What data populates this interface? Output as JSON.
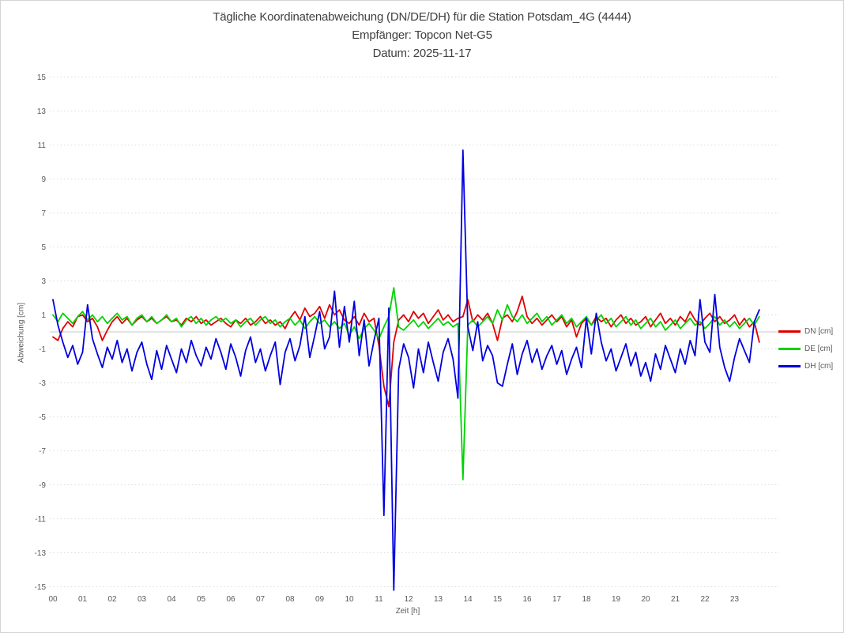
{
  "chart_data": {
    "type": "line",
    "title": "Tägliche Koordinatenabweichung (DN/DE/DH) für die Station Potsdam_4G (4444)",
    "subtitle_lines": [
      "Empfänger: Topcon Net-G5",
      "Datum: 2025-11-17"
    ],
    "xlabel": "Zeit [h]",
    "ylabel": "Abweichung [cm]",
    "xlim": [
      0,
      24
    ],
    "ylim": [
      -15,
      15
    ],
    "x_ticks": [
      "00",
      "01",
      "02",
      "03",
      "04",
      "05",
      "06",
      "07",
      "08",
      "09",
      "10",
      "11",
      "12",
      "13",
      "14",
      "15",
      "16",
      "17",
      "18",
      "19",
      "20",
      "21",
      "22",
      "23"
    ],
    "y_ticks": [
      15,
      13,
      11,
      9,
      7,
      5,
      3,
      1,
      -1,
      -3,
      -5,
      -7,
      -9,
      -11,
      -13,
      -15
    ],
    "grid": "horizontal dotted lines at odd values, solid light line at 0, no vertical gridlines",
    "legend_position": "right",
    "x_start_hours": 0,
    "x_step_hours": 0.1666667,
    "series": [
      {
        "name": "DN [cm]",
        "color": "#e00000",
        "values": [
          -0.3,
          -0.5,
          0.2,
          0.6,
          0.3,
          0.9,
          1.0,
          0.6,
          0.8,
          0.3,
          -0.5,
          0.1,
          0.6,
          0.9,
          0.5,
          0.8,
          0.4,
          0.7,
          0.9,
          0.6,
          0.8,
          0.5,
          0.7,
          0.9,
          0.6,
          0.7,
          0.4,
          0.8,
          0.6,
          0.9,
          0.5,
          0.7,
          0.4,
          0.6,
          0.8,
          0.5,
          0.3,
          0.7,
          0.5,
          0.8,
          0.4,
          0.6,
          0.9,
          0.5,
          0.7,
          0.4,
          0.6,
          0.2,
          0.8,
          1.2,
          0.7,
          1.4,
          0.9,
          1.1,
          1.5,
          0.8,
          1.6,
          1.0,
          1.3,
          0.7,
          0.5,
          0.9,
          0.4,
          1.1,
          0.6,
          0.8,
          -0.8,
          -3.2,
          -4.4,
          -0.6,
          0.7,
          1.0,
          0.6,
          1.2,
          0.8,
          1.1,
          0.5,
          0.9,
          1.3,
          0.7,
          1.0,
          0.6,
          0.8,
          0.9,
          1.9,
          0.6,
          1.0,
          0.7,
          1.1,
          0.5,
          -0.5,
          0.8,
          1.0,
          0.6,
          1.2,
          2.1,
          0.9,
          0.5,
          0.8,
          0.4,
          0.7,
          1.0,
          0.6,
          0.9,
          0.3,
          0.7,
          -0.3,
          0.5,
          0.8,
          0.4,
          0.9,
          0.6,
          0.8,
          0.3,
          0.7,
          1.0,
          0.5,
          0.8,
          0.4,
          0.6,
          0.9,
          0.3,
          0.7,
          1.1,
          0.5,
          0.8,
          0.4,
          0.9,
          0.6,
          1.2,
          0.7,
          0.4,
          0.8,
          1.1,
          0.6,
          0.9,
          0.5,
          0.7,
          1.0,
          0.4,
          0.8,
          0.3,
          0.6,
          -0.6
        ]
      },
      {
        "name": "DE [cm]",
        "color": "#00d300",
        "values": [
          1.0,
          0.6,
          1.1,
          0.8,
          0.5,
          0.9,
          1.2,
          0.7,
          1.0,
          0.6,
          0.9,
          0.5,
          0.8,
          1.1,
          0.7,
          0.9,
          0.4,
          0.8,
          1.0,
          0.6,
          0.9,
          0.5,
          0.7,
          1.0,
          0.6,
          0.8,
          0.3,
          0.7,
          0.9,
          0.5,
          0.8,
          0.4,
          0.7,
          0.9,
          0.6,
          0.8,
          0.5,
          0.7,
          0.3,
          0.6,
          0.8,
          0.4,
          0.7,
          0.9,
          0.5,
          0.7,
          0.3,
          0.6,
          0.8,
          0.4,
          0.7,
          0.2,
          0.6,
          0.9,
          0.5,
          0.7,
          0.3,
          0.6,
          0.2,
          0.5,
          -0.2,
          0.3,
          -0.4,
          0.2,
          0.5,
          0.1,
          -0.4,
          0.3,
          0.9,
          2.6,
          0.3,
          0.1,
          0.4,
          0.7,
          0.3,
          0.6,
          0.2,
          0.5,
          0.8,
          0.4,
          0.6,
          0.3,
          0.5,
          -8.7,
          0.4,
          0.7,
          0.3,
          0.6,
          0.9,
          0.5,
          1.3,
          0.7,
          1.6,
          0.9,
          0.6,
          1.0,
          0.5,
          0.8,
          1.1,
          0.6,
          0.9,
          0.4,
          0.7,
          1.0,
          0.5,
          0.8,
          0.3,
          0.6,
          0.9,
          0.4,
          0.7,
          1.0,
          0.5,
          0.8,
          0.3,
          0.6,
          0.9,
          0.4,
          0.7,
          0.2,
          0.5,
          0.8,
          0.3,
          0.6,
          0.1,
          0.4,
          0.7,
          0.2,
          0.5,
          0.8,
          0.4,
          0.6,
          0.2,
          0.5,
          0.9,
          0.4,
          0.7,
          0.3,
          0.6,
          0.2,
          0.5,
          0.8,
          0.4,
          0.9
        ]
      },
      {
        "name": "DH [cm]",
        "color": "#0000e0",
        "values": [
          1.9,
          0.4,
          -0.6,
          -1.5,
          -0.8,
          -1.9,
          -1.2,
          1.6,
          -0.4,
          -1.3,
          -2.1,
          -0.9,
          -1.6,
          -0.5,
          -1.8,
          -1.0,
          -2.3,
          -1.2,
          -0.6,
          -1.9,
          -2.8,
          -1.1,
          -2.2,
          -0.8,
          -1.6,
          -2.4,
          -1.0,
          -1.8,
          -0.5,
          -1.4,
          -2.0,
          -0.9,
          -1.6,
          -0.4,
          -1.2,
          -2.2,
          -0.7,
          -1.5,
          -2.6,
          -1.1,
          -0.3,
          -1.8,
          -1.0,
          -2.3,
          -1.4,
          -0.6,
          -3.1,
          -1.2,
          -0.4,
          -1.7,
          -0.8,
          0.9,
          -1.5,
          -0.2,
          1.2,
          -1.0,
          -0.3,
          2.4,
          -0.9,
          1.5,
          -0.6,
          1.8,
          -1.4,
          0.7,
          -2.0,
          -0.5,
          0.8,
          -10.8,
          1.4,
          -15.2,
          -2.2,
          -0.7,
          -1.5,
          -3.3,
          -1.0,
          -2.4,
          -0.6,
          -1.8,
          -2.9,
          -1.2,
          -0.4,
          -1.6,
          -3.9,
          10.7,
          0.3,
          -1.1,
          0.6,
          -1.7,
          -0.8,
          -1.4,
          -3.0,
          -3.2,
          -1.9,
          -0.7,
          -2.5,
          -1.3,
          -0.5,
          -1.8,
          -1.0,
          -2.2,
          -1.4,
          -0.8,
          -1.9,
          -1.1,
          -2.5,
          -1.6,
          -0.9,
          -2.1,
          0.8,
          -1.3,
          1.1,
          -0.6,
          -1.7,
          -1.0,
          -2.3,
          -1.5,
          -0.7,
          -2.0,
          -1.2,
          -2.6,
          -1.8,
          -2.9,
          -1.3,
          -2.2,
          -0.8,
          -1.6,
          -2.4,
          -1.0,
          -1.9,
          -0.5,
          -1.4,
          1.9,
          -0.6,
          -1.2,
          2.2,
          -0.9,
          -2.1,
          -2.9,
          -1.5,
          -0.4,
          -1.1,
          -1.8,
          0.6,
          1.3
        ]
      }
    ],
    "style": {
      "grid_color": "#dcdcdc",
      "zero_line_color": "#c8c8c8",
      "tick_label_color": "#595959",
      "title_color": "#3f3f3f",
      "background": "#ffffff"
    }
  }
}
